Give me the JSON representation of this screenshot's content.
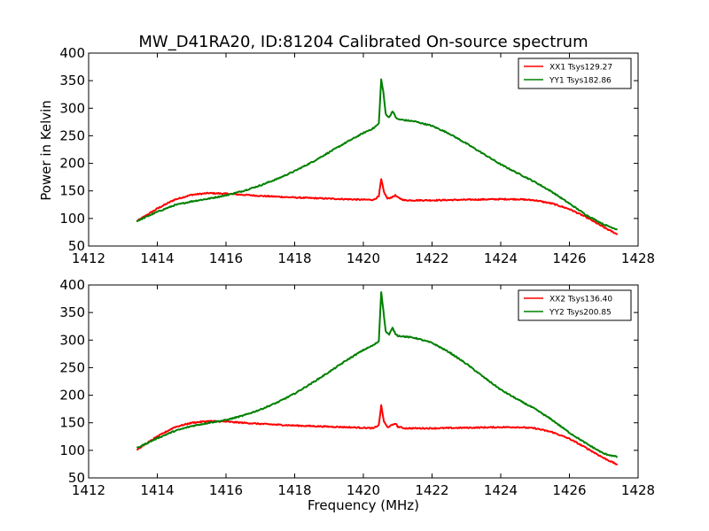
{
  "chart_data": [
    {
      "type": "line",
      "title": "MW_D41RA20, ID:81204 Calibrated On-source spectrum",
      "xlabel": "",
      "ylabel": "Power in Kelvin",
      "xlim": [
        1412,
        1428
      ],
      "ylim": [
        50,
        400
      ],
      "xticks": [
        "1412",
        "1414",
        "1416",
        "1418",
        "1420",
        "1422",
        "1424",
        "1426",
        "1428"
      ],
      "yticks": [
        "50",
        "100",
        "150",
        "200",
        "250",
        "300",
        "350",
        "400"
      ],
      "grid": false,
      "legend": "top-right",
      "series": [
        {
          "name": "XX1 Tsys129.27",
          "color": "#ff0000",
          "x": [
            1413.4,
            1414.0,
            1414.5,
            1415.0,
            1415.5,
            1416.0,
            1417.0,
            1418.0,
            1419.0,
            1420.0,
            1420.3,
            1420.45,
            1420.52,
            1420.6,
            1420.7,
            1420.85,
            1420.93,
            1421.0,
            1421.2,
            1422.0,
            1423.0,
            1424.0,
            1424.5,
            1425.0,
            1425.5,
            1426.0,
            1426.5,
            1427.0,
            1427.4
          ],
          "values": [
            95,
            118,
            134,
            143,
            146,
            145,
            141,
            138,
            136,
            134,
            134,
            140,
            171,
            148,
            136,
            139,
            142,
            138,
            133,
            133,
            134,
            135,
            135,
            133,
            127,
            117,
            102,
            84,
            71
          ]
        },
        {
          "name": "YY1 Tsys182.86",
          "color": "#008000",
          "x": [
            1413.4,
            1414.0,
            1414.5,
            1415.0,
            1415.5,
            1416.0,
            1416.5,
            1417.0,
            1417.5,
            1418.0,
            1418.5,
            1419.0,
            1419.5,
            1420.0,
            1420.3,
            1420.45,
            1420.52,
            1420.58,
            1420.65,
            1420.75,
            1420.85,
            1420.93,
            1421.0,
            1421.5,
            1422.0,
            1422.5,
            1423.0,
            1423.5,
            1424.0,
            1424.5,
            1425.0,
            1425.5,
            1426.0,
            1426.5,
            1427.0,
            1427.4
          ],
          "values": [
            95,
            112,
            124,
            131,
            136,
            142,
            150,
            160,
            172,
            186,
            202,
            220,
            238,
            255,
            264,
            272,
            352,
            330,
            290,
            283,
            295,
            285,
            280,
            276,
            268,
            254,
            236,
            217,
            198,
            182,
            166,
            148,
            127,
            106,
            89,
            80
          ]
        }
      ]
    },
    {
      "type": "line",
      "title": "",
      "xlabel": "Frequency (MHz)",
      "ylabel": "",
      "xlim": [
        1412,
        1428
      ],
      "ylim": [
        50,
        400
      ],
      "xticks": [
        "1412",
        "1414",
        "1416",
        "1418",
        "1420",
        "1422",
        "1424",
        "1426",
        "1428"
      ],
      "yticks": [
        "50",
        "100",
        "150",
        "200",
        "250",
        "300",
        "350",
        "400"
      ],
      "grid": false,
      "legend": "top-right",
      "series": [
        {
          "name": "XX2 Tsys136.40",
          "color": "#ff0000",
          "x": [
            1413.4,
            1414.0,
            1414.5,
            1415.0,
            1415.5,
            1416.0,
            1417.0,
            1418.0,
            1419.0,
            1420.0,
            1420.3,
            1420.45,
            1420.52,
            1420.6,
            1420.7,
            1420.85,
            1420.93,
            1421.0,
            1421.2,
            1422.0,
            1423.0,
            1424.0,
            1424.5,
            1425.0,
            1425.5,
            1426.0,
            1426.5,
            1427.0,
            1427.4
          ],
          "values": [
            101,
            125,
            142,
            150,
            153,
            152,
            148,
            145,
            143,
            141,
            140,
            146,
            181,
            152,
            142,
            146,
            149,
            143,
            140,
            140,
            141,
            142,
            142,
            140,
            133,
            121,
            104,
            86,
            74
          ]
        },
        {
          "name": "YY2 Tsys200.85",
          "color": "#008000",
          "x": [
            1413.4,
            1414.0,
            1414.5,
            1415.0,
            1415.5,
            1416.0,
            1416.5,
            1417.0,
            1417.5,
            1418.0,
            1418.5,
            1419.0,
            1419.5,
            1420.0,
            1420.3,
            1420.45,
            1420.52,
            1420.58,
            1420.65,
            1420.75,
            1420.85,
            1420.93,
            1421.0,
            1421.5,
            1422.0,
            1422.5,
            1423.0,
            1423.5,
            1424.0,
            1424.5,
            1425.0,
            1425.5,
            1426.0,
            1426.5,
            1427.0,
            1427.4
          ],
          "values": [
            104,
            122,
            135,
            144,
            150,
            155,
            163,
            174,
            187,
            203,
            222,
            242,
            263,
            282,
            291,
            298,
            388,
            355,
            316,
            310,
            322,
            312,
            308,
            304,
            295,
            278,
            257,
            233,
            210,
            192,
            175,
            155,
            132,
            112,
            94,
            88
          ]
        }
      ]
    }
  ]
}
